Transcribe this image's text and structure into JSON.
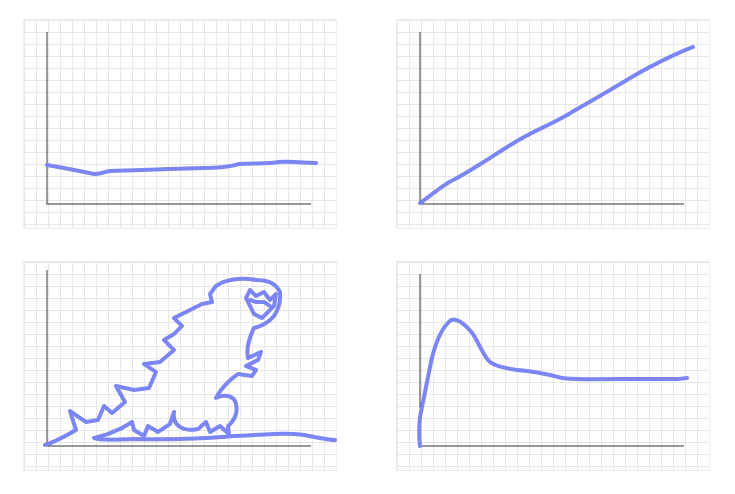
{
  "colors": {
    "curve": "#7b86f2",
    "axis": "#333333",
    "grid": "#e7e7e7"
  },
  "panels": [
    {
      "id": "top-left",
      "shape": "nearly-flat-line"
    },
    {
      "id": "top-right",
      "shape": "rising-line"
    },
    {
      "id": "bottom-left",
      "shape": "dinosaur-doodle"
    },
    {
      "id": "bottom-right",
      "shape": "spike-then-plateau"
    }
  ]
}
